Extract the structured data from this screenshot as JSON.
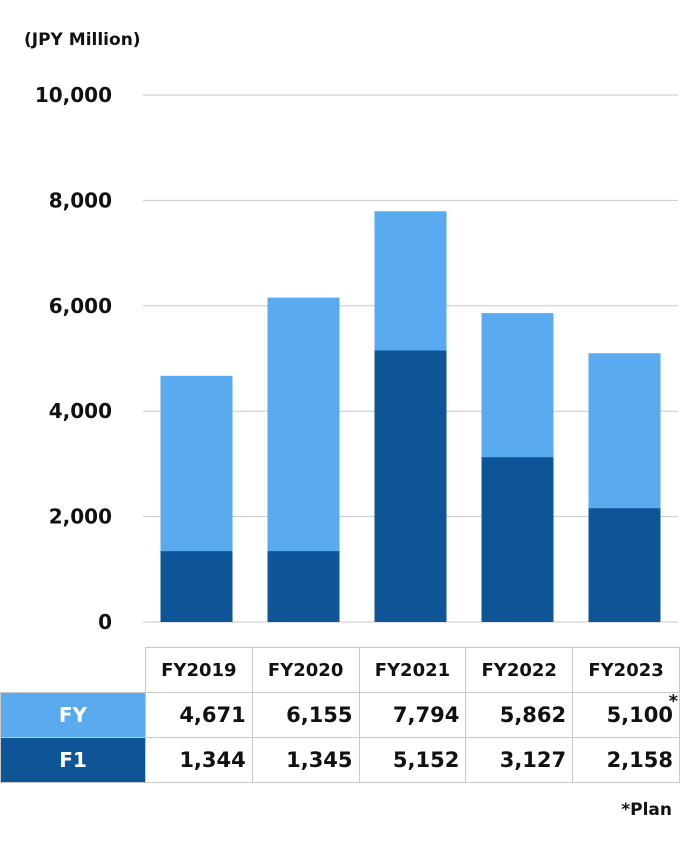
{
  "unit_label": "(JPY Million)",
  "plan_note": "*Plan",
  "plan_marker": "*",
  "colors": {
    "FY": "#5aaaf0",
    "F1": "#0e5597",
    "grid": "#c8c8c8"
  },
  "table": {
    "headers": [
      "FY2019",
      "FY2020",
      "FY2021",
      "FY2022",
      "FY2023"
    ],
    "rows": [
      {
        "label": "FY",
        "values": [
          "4,671",
          "6,155",
          "7,794",
          "5,862",
          "5,100"
        ]
      },
      {
        "label": "F1",
        "values": [
          "1,344",
          "1,345",
          "5,152",
          "3,127",
          "2,158"
        ]
      }
    ]
  },
  "chart_data": {
    "type": "bar",
    "categories": [
      "FY2019",
      "FY2020",
      "FY2021",
      "FY2022",
      "FY2023"
    ],
    "series": [
      {
        "name": "FY",
        "values": [
          4671,
          6155,
          7794,
          5862,
          5100
        ]
      },
      {
        "name": "F1",
        "values": [
          1344,
          1345,
          5152,
          3127,
          2158
        ]
      }
    ],
    "overlay": true,
    "title": "",
    "ylabel": "(JPY Million)",
    "ylim": [
      0,
      10000
    ],
    "yticks": [
      0,
      2000,
      4000,
      6000,
      8000,
      10000
    ],
    "ytick_labels": [
      "0",
      "2,000",
      "4,000",
      "6,000",
      "8,000",
      "10,000"
    ],
    "grid": true,
    "legend": "data table below chart",
    "annotations": [
      "FY2023 FY value is a plan (*)"
    ]
  }
}
